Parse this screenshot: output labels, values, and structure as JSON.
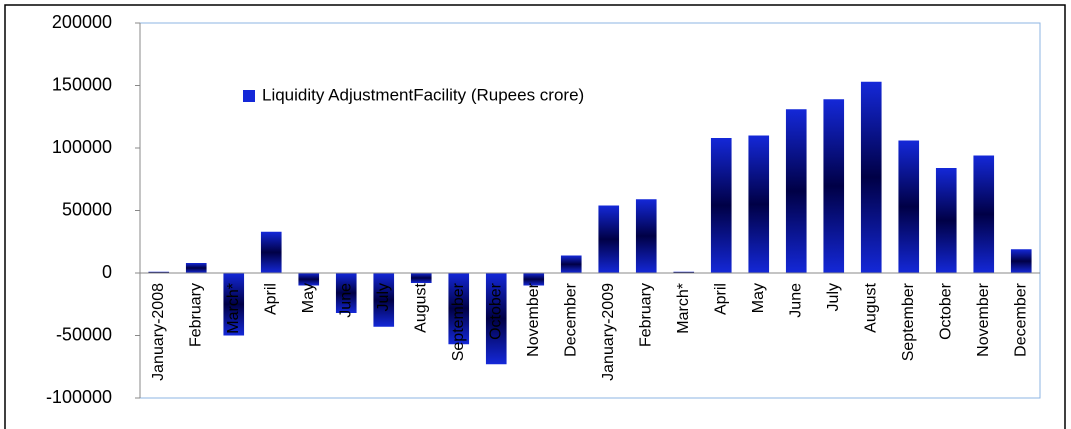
{
  "chart_data": {
    "type": "bar",
    "categories": [
      "January-2008",
      "February",
      "March*",
      "April",
      "May",
      "June",
      "July",
      "August",
      "September",
      "October",
      "November",
      "December",
      "January-2009",
      "February",
      "March*",
      "April",
      "May",
      "June",
      "July",
      "August",
      "September",
      "October",
      "November",
      "December"
    ],
    "series": [
      {
        "name": "Liquidity AdjustmentFacility (Rupees crore)",
        "color": "#1428d8",
        "values": [
          1000,
          8000,
          -50000,
          33000,
          -10000,
          -32000,
          -43000,
          -8000,
          -57000,
          -73000,
          -10000,
          14000,
          54000,
          59000,
          1000,
          108000,
          110000,
          131000,
          139000,
          153000,
          106000,
          84000,
          94000,
          19000
        ]
      }
    ],
    "ylim": [
      -100000,
      200000
    ],
    "yticks": [
      -100000,
      -50000,
      0,
      50000,
      100000,
      150000,
      200000
    ],
    "grid": false
  }
}
